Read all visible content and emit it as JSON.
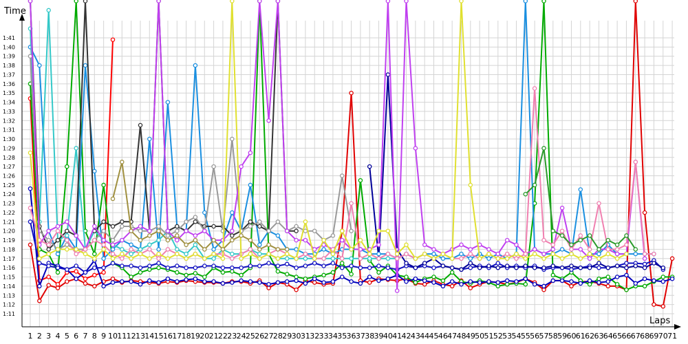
{
  "chart_data": {
    "type": "line",
    "title": "",
    "xlabel": "Laps",
    "ylabel": "Time",
    "x_ticks": [
      "1",
      "2",
      "3",
      "4",
      "5",
      "6",
      "7",
      "8",
      "9",
      "10",
      "11",
      "12",
      "13",
      "14",
      "15",
      "16",
      "17",
      "18",
      "19",
      "20",
      "21",
      "22",
      "23",
      "24",
      "25",
      "26",
      "27",
      "28",
      "29",
      "30",
      "31",
      "32",
      "33",
      "34",
      "35",
      "36",
      "37",
      "38",
      "39",
      "40",
      "41",
      "42",
      "43",
      "44",
      "45",
      "46",
      "47",
      "48",
      "49",
      "50",
      "51",
      "52",
      "53",
      "54",
      "55",
      "56",
      "57",
      "58",
      "59",
      "60",
      "61",
      "62",
      "63",
      "64",
      "65",
      "66",
      "67",
      "68",
      "69",
      "70",
      "71"
    ],
    "y_ticks": [
      "1:11",
      "1:12",
      "1:13",
      "1:14",
      "1:15",
      "1:16",
      "1:17",
      "1:18",
      "1:19",
      "1:20",
      "1:21",
      "1:22",
      "1:23",
      "1:24",
      "1:25",
      "1:26",
      "1:27",
      "1:28",
      "1:29",
      "1:30",
      "1:31",
      "1:32",
      "1:33",
      "1:34",
      "1:35",
      "1:36",
      "1:37",
      "1:38",
      "1:39",
      "1:40",
      "1:41"
    ],
    "ylim_seconds": [
      70,
      105
    ],
    "xlim": [
      1,
      71
    ],
    "grid": true,
    "legend": "none",
    "series": [
      {
        "color": "#ff0000",
        "values": [
          94.4,
          74.6,
          75.0,
          74.2,
          75.5,
          75.6,
          74.8,
          75.2,
          75.5,
          100.8,
          null,
          null,
          null,
          null,
          null,
          null,
          null,
          null,
          null,
          null,
          null,
          null,
          null,
          null,
          null,
          null,
          null,
          null,
          null,
          null,
          null,
          null,
          null,
          null,
          null,
          null,
          null,
          null,
          null,
          null,
          null,
          null,
          null,
          null,
          null,
          null,
          null,
          null,
          null,
          null,
          null,
          null,
          null,
          null,
          null,
          null,
          null,
          null,
          null,
          null,
          null,
          null,
          null,
          null,
          null,
          null,
          null,
          null,
          null,
          null,
          null
        ]
      },
      {
        "color": "#e00000",
        "values": [
          78.5,
          72.4,
          74.1,
          73.8,
          74.5,
          74.8,
          74.3,
          74.0,
          74.5,
          74.8,
          74.4,
          74.6,
          74.5,
          74.4,
          74.3,
          74.5,
          74.4,
          74.6,
          74.5,
          74.4,
          74.4,
          74.3,
          74.5,
          74.5,
          74.3,
          74.6,
          73.8,
          74.4,
          74.2,
          73.6,
          74.6,
          74.4,
          74.2,
          74.3,
          80.0,
          95.0,
          74.6,
          74.4,
          74.8,
          74.7,
          74.6,
          74.8,
          74.3,
          74.2,
          74.6,
          74.2,
          74.0,
          74.6,
          73.8,
          74.2,
          74.5,
          74.4,
          74.2,
          74.4,
          74.8,
          74.4,
          73.6,
          74.6,
          74.6,
          74.0,
          74.5,
          74.5,
          74.3,
          74.0,
          74.0,
          73.6,
          105.0,
          82.0,
          72.0,
          71.8,
          77.0
        ]
      },
      {
        "color": "#00aa00",
        "values": [
          96.0,
          78.0,
          77.5,
          75.5,
          87.0,
          105.0,
          80.0,
          77.5,
          85.0,
          76.5,
          76.0,
          75.0,
          75.5,
          75.8,
          76.0,
          75.8,
          75.5,
          75.2,
          75.4,
          75.0,
          76.0,
          75.5,
          75.6,
          75.2,
          76.0,
          105.0,
          77.5,
          75.6,
          75.3,
          75.0,
          74.8,
          75.0,
          75.2,
          75.5,
          76.5,
          75.3,
          85.5,
          76.8,
          75.5,
          76.2,
          75.2,
          75.0,
          74.4,
          74.8,
          75.0,
          74.6,
          75.5,
          74.5,
          74.3,
          74.6,
          74.4,
          74.0,
          74.2,
          74.3,
          74.2,
          83.0,
          105.0,
          75.2,
          74.8,
          75.5,
          74.6,
          74.2,
          74.8,
          75.0,
          74.2,
          73.6,
          74.0,
          74.0,
          74.5,
          75.0,
          75.0
        ]
      },
      {
        "color": "#0000bb",
        "values": [
          84.6,
          74.0,
          76.5,
          76.2,
          75.8,
          74.8,
          75.5,
          76.8,
          74.0,
          74.4,
          74.5,
          74.5,
          74.2,
          74.6,
          74.4,
          74.8,
          74.5,
          74.7,
          74.8,
          74.5,
          74.5,
          74.3,
          74.4,
          74.6,
          74.5,
          74.4,
          74.2,
          74.4,
          74.5,
          74.6,
          74.3,
          74.8,
          74.4,
          74.5,
          75.0,
          74.5,
          74.3,
          75.0,
          74.6,
          74.8,
          75.2,
          74.5,
          74.8,
          74.6,
          74.4,
          74.0,
          74.5,
          74.2,
          74.5,
          74.4,
          74.5,
          74.4,
          74.6,
          74.5,
          74.8,
          74.2,
          74.0,
          74.6,
          74.6,
          74.5,
          74.3,
          74.6,
          74.4,
          74.5,
          75.0,
          75.2,
          74.3,
          74.8,
          74.6,
          74.5,
          74.8
        ]
      },
      {
        "color": "#1010c0",
        "values": [
          81.0,
          76.5,
          76.2,
          76.0,
          75.8,
          76.2,
          75.5,
          76.0,
          76.0,
          76.5,
          76.2,
          76.2,
          76.0,
          76.2,
          76.5,
          76.0,
          76.2,
          76.0,
          76.0,
          76.2,
          76.2,
          76.0,
          76.0,
          76.0,
          76.2,
          76.2,
          76.5,
          76.2,
          76.4,
          76.0,
          76.2,
          76.5,
          76.2,
          76.5,
          76.0,
          76.2,
          76.0,
          76.0,
          76.2,
          76.0,
          75.8,
          76.2,
          76.0,
          76.2,
          76.0,
          76.2,
          76.0,
          75.8,
          76.0,
          76.2,
          76.0,
          76.5,
          76.0,
          76.2,
          76.0,
          76.2,
          75.8,
          76.0,
          76.0,
          75.8,
          76.0,
          76.2,
          76.0,
          76.0,
          76.2,
          76.5,
          76.5,
          76.4,
          76.8,
          75.8,
          null
        ]
      },
      {
        "color": "#000099",
        "values": [
          null,
          null,
          null,
          null,
          null,
          null,
          null,
          null,
          null,
          null,
          null,
          null,
          null,
          null,
          null,
          null,
          null,
          null,
          null,
          null,
          null,
          null,
          null,
          null,
          null,
          null,
          null,
          null,
          null,
          null,
          null,
          null,
          null,
          null,
          null,
          null,
          null,
          87.0,
          77.0,
          97.0,
          78.0,
          76.5,
          76.0,
          76.5,
          77.0,
          76.2,
          76.0,
          75.8,
          76.5,
          76.0,
          76.2,
          76.0,
          76.2,
          76.0,
          76.2,
          76.0,
          76.0,
          76.2,
          76.0,
          76.2,
          76.0,
          76.0,
          76.5,
          76.0,
          76.2,
          76.0,
          76.2,
          76.0,
          76.5,
          76.0,
          null
        ]
      },
      {
        "color": "#1a8fe0",
        "values": [
          100.0,
          98.0,
          80.0,
          77.5,
          79.5,
          78.0,
          98.0,
          86.5,
          77.0,
          78.0,
          79.0,
          78.5,
          78.0,
          90.0,
          78.0,
          94.0,
          80.5,
          80.0,
          98.0,
          82.0,
          78.0,
          79.0,
          82.0,
          80.0,
          85.0,
          78.5,
          80.0,
          79.5,
          78.0,
          78.0,
          77.5,
          77.5,
          78.0,
          77.5,
          78.0,
          78.0,
          78.0,
          77.5,
          77.5,
          77.5,
          77.0,
          77.5,
          77.0,
          77.5,
          77.5,
          77.0,
          77.0,
          77.5,
          77.0,
          77.5,
          77.0,
          77.5,
          77.0,
          77.5,
          105.0,
          78.0,
          77.5,
          77.5,
          78.0,
          77.5,
          84.5,
          77.5,
          77.5,
          78.5,
          77.5,
          77.5,
          77.5,
          77.5,
          77.5,
          null,
          null
        ]
      },
      {
        "color": "#34c8c8",
        "values": [
          102.0,
          81.0,
          104.0,
          79.0,
          79.5,
          89.0,
          78.0,
          80.0,
          79.0,
          78.5,
          78.0,
          77.5,
          78.0,
          78.5,
          79.0,
          80.0,
          78.0,
          77.5,
          78.5,
          77.0,
          77.0,
          78.0,
          77.5,
          77.5,
          78.0,
          77.5,
          77.5,
          77.0,
          77.0,
          77.0,
          77.0,
          77.0,
          77.0,
          77.0,
          77.0,
          77.0,
          77.0,
          77.0,
          77.0,
          77.0,
          77.0,
          null,
          null,
          null,
          null,
          null,
          null,
          null,
          null,
          null,
          null,
          null,
          null,
          null,
          null,
          null,
          null,
          null,
          null,
          null,
          null,
          null,
          null,
          null,
          null,
          null,
          null,
          null,
          null,
          null,
          null
        ]
      },
      {
        "color": "#333333",
        "values": [
          105.0,
          80.5,
          78.0,
          79.0,
          80.0,
          79.5,
          105.0,
          80.0,
          81.0,
          80.5,
          81.0,
          81.0,
          91.5,
          80.0,
          105.0,
          80.0,
          80.5,
          80.0,
          81.0,
          80.5,
          80.5,
          80.5,
          79.5,
          80.0,
          81.0,
          80.5,
          80.0,
          105.0,
          80.0,
          80.0,
          null,
          null,
          null,
          null,
          null,
          null,
          null,
          null,
          null,
          null,
          null,
          null,
          null,
          null,
          null,
          null,
          null,
          null,
          null,
          null,
          null,
          null,
          null,
          null,
          null,
          null,
          null,
          null,
          null,
          null,
          null,
          null,
          null,
          null,
          null,
          null,
          null,
          null,
          null,
          null,
          null
        ]
      },
      {
        "color": "#999999",
        "values": [
          99.0,
          80.0,
          79.0,
          78.0,
          78.5,
          78.0,
          78.0,
          79.0,
          80.0,
          79.0,
          80.5,
          80.5,
          80.0,
          80.0,
          80.5,
          79.5,
          80.0,
          81.0,
          81.5,
          80.0,
          87.0,
          80.0,
          90.0,
          80.0,
          80.5,
          81.0,
          80.0,
          81.0,
          80.0,
          80.5,
          80.0,
          80.0,
          79.0,
          79.5,
          86.0,
          80.0,
          null,
          null,
          null,
          null,
          null,
          null,
          null,
          null,
          null,
          null,
          null,
          null,
          null,
          null,
          null,
          null,
          null,
          null,
          null,
          null,
          null,
          null,
          null,
          null,
          null,
          null,
          null,
          null,
          null,
          null,
          null,
          null,
          null,
          null,
          null
        ]
      },
      {
        "color": "#c040f0",
        "values": [
          105.0,
          78.5,
          80.0,
          80.5,
          81.0,
          79.5,
          78.0,
          80.5,
          79.0,
          78.5,
          79.0,
          80.0,
          80.5,
          80.0,
          105.0,
          80.0,
          79.0,
          80.0,
          79.5,
          80.0,
          79.0,
          79.0,
          80.0,
          87.0,
          88.5,
          105.0,
          92.0,
          105.0,
          80.0,
          79.0,
          79.0,
          78.0,
          78.5,
          78.0,
          79.0,
          78.0,
          78.0,
          78.0,
          78.5,
          105.0,
          73.5,
          105.0,
          89.0,
          78.5,
          78.0,
          77.5,
          78.0,
          78.5,
          78.0,
          78.5,
          78.0,
          77.5,
          79.0,
          78.5,
          77.5,
          78.0,
          77.5,
          78.0,
          82.5,
          78.0,
          78.0,
          77.0,
          78.0,
          78.0,
          77.5,
          77.5,
          87.5,
          77.0,
          null,
          null,
          null
        ]
      },
      {
        "color": "#f080b0",
        "values": [
          82.5,
          79.0,
          78.5,
          80.0,
          79.0,
          77.5,
          78.0,
          79.0,
          78.5,
          77.5,
          77.0,
          78.0,
          77.5,
          78.0,
          77.0,
          78.0,
          77.5,
          77.0,
          77.5,
          77.0,
          77.5,
          77.5,
          77.0,
          77.5,
          78.0,
          77.0,
          77.5,
          78.0,
          77.5,
          77.0,
          77.5,
          77.0,
          77.0,
          78.0,
          77.0,
          83.0,
          77.0,
          77.5,
          77.0,
          77.5,
          77.0,
          77.5,
          77.0,
          77.5,
          77.0,
          77.5,
          77.0,
          77.0,
          77.5,
          77.0,
          77.5,
          77.0,
          77.5,
          77.0,
          77.5,
          95.5,
          79.0,
          78.5,
          80.0,
          78.0,
          79.5,
          78.0,
          83.0,
          78.0,
          78.0,
          78.5,
          87.5,
          77.5,
          77.5,
          null,
          null
        ]
      },
      {
        "color": "#e0e030",
        "values": [
          88.5,
          77.0,
          77.5,
          78.0,
          78.0,
          78.0,
          77.5,
          77.0,
          78.0,
          77.0,
          77.5,
          77.0,
          77.5,
          77.0,
          77.5,
          77.0,
          77.5,
          77.0,
          77.5,
          77.0,
          77.5,
          77.0,
          105.0,
          77.0,
          77.5,
          77.0,
          77.5,
          77.0,
          77.5,
          77.0,
          81.0,
          77.0,
          79.0,
          77.5,
          80.0,
          78.0,
          79.0,
          77.5,
          80.0,
          80.0,
          77.5,
          78.5,
          77.0,
          77.5,
          77.0,
          77.5,
          77.0,
          105.0,
          85.0,
          77.0,
          77.5,
          77.0,
          77.0,
          77.5,
          77.0,
          77.5,
          77.0,
          77.5,
          77.0,
          77.5,
          77.0,
          77.5,
          77.0,
          77.5,
          77.0,
          77.5,
          null,
          null,
          null,
          null,
          null
        ]
      },
      {
        "color": "#a09040",
        "values": [
          null,
          null,
          null,
          null,
          null,
          null,
          null,
          null,
          null,
          83.5,
          87.5,
          80.0,
          79.0,
          79.5,
          80.0,
          79.0,
          79.5,
          78.5,
          79.0,
          78.0,
          79.0,
          78.0,
          79.0,
          79.5,
          79.0,
          78.0,
          78.5,
          78.0,
          78.0,
          null,
          null,
          null,
          null,
          null,
          null,
          null,
          null,
          null,
          null,
          null,
          null,
          null,
          null,
          null,
          null,
          null,
          null,
          null,
          null,
          null,
          null,
          null,
          null,
          null,
          null,
          null,
          null,
          null,
          null,
          null,
          null,
          null,
          null,
          null,
          null,
          null,
          null,
          null,
          null,
          null,
          null
        ]
      },
      {
        "color": "#2a9a2a",
        "values": [
          null,
          null,
          null,
          null,
          null,
          null,
          null,
          null,
          null,
          null,
          null,
          null,
          null,
          null,
          null,
          null,
          null,
          null,
          null,
          null,
          null,
          null,
          null,
          null,
          null,
          null,
          null,
          null,
          null,
          null,
          null,
          null,
          null,
          null,
          null,
          null,
          null,
          null,
          null,
          null,
          null,
          null,
          null,
          null,
          null,
          null,
          null,
          null,
          null,
          null,
          null,
          null,
          null,
          null,
          84.0,
          85.0,
          89.0,
          80.0,
          79.5,
          78.5,
          79.0,
          79.5,
          78.0,
          79.0,
          78.5,
          79.5,
          78.0,
          null,
          null,
          null,
          null
        ]
      }
    ]
  }
}
